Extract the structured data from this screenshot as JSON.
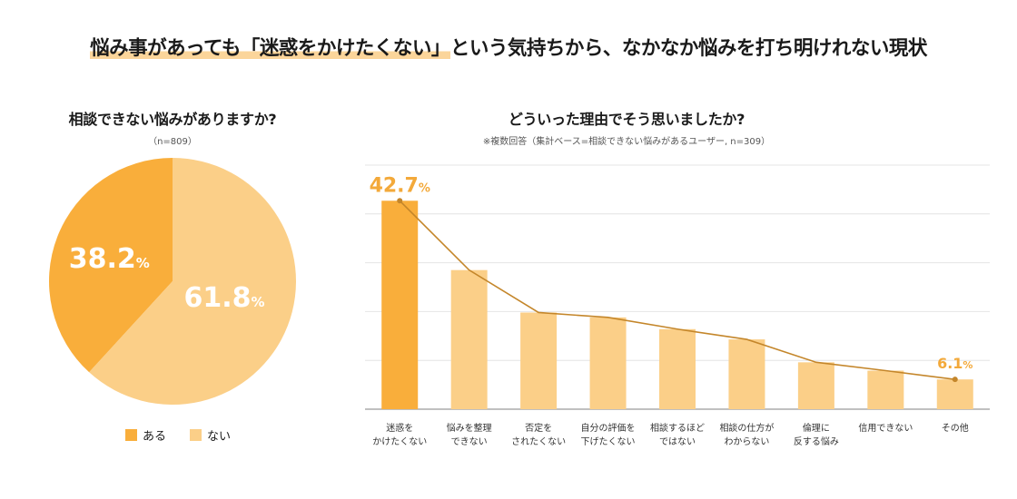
{
  "headline": {
    "highlighted": "悩み事があっても「迷惑をかけたくない」",
    "rest": "という気持ちから、なかなか悩みを打ち明けれない現状"
  },
  "colors": {
    "dark": "#f9ae3b",
    "light": "#fbcf88",
    "line": "#c4862a",
    "label": "#f3a93a"
  },
  "chart_data": [
    {
      "type": "pie",
      "title": "相談できない悩みがありますか?",
      "note": "（n=809）",
      "slices": [
        {
          "label": "ある",
          "value": 38.2,
          "display": "38.2",
          "unit": "%"
        },
        {
          "label": "ない",
          "value": 61.8,
          "display": "61.8",
          "unit": "%"
        }
      ]
    },
    {
      "type": "bar",
      "title": "どういった理由でそう思いましたか?",
      "note": "※複数回答（集計ベース=相談できない悩みがあるユーザー, n=309）",
      "categories": [
        [
          "迷惑を",
          "かけたくない"
        ],
        [
          "悩みを整理",
          "できない"
        ],
        [
          "否定を",
          "されたくない"
        ],
        [
          "自分の評価を",
          "下げたくない"
        ],
        [
          "相談するほど",
          "ではない"
        ],
        [
          "相談の仕方が",
          "わからない"
        ],
        [
          "倫理に",
          "反する悩み"
        ],
        [
          "信用できない"
        ],
        [
          "その他"
        ]
      ],
      "values": [
        42.7,
        28.5,
        19.8,
        18.8,
        16.4,
        14.3,
        9.6,
        7.9,
        6.1
      ],
      "labels": [
        {
          "index": 0,
          "value": "42.7",
          "unit": "%"
        },
        {
          "index": 8,
          "value": "6.1",
          "unit": "%"
        }
      ],
      "ylim": [
        0,
        50
      ],
      "grid": true
    }
  ]
}
